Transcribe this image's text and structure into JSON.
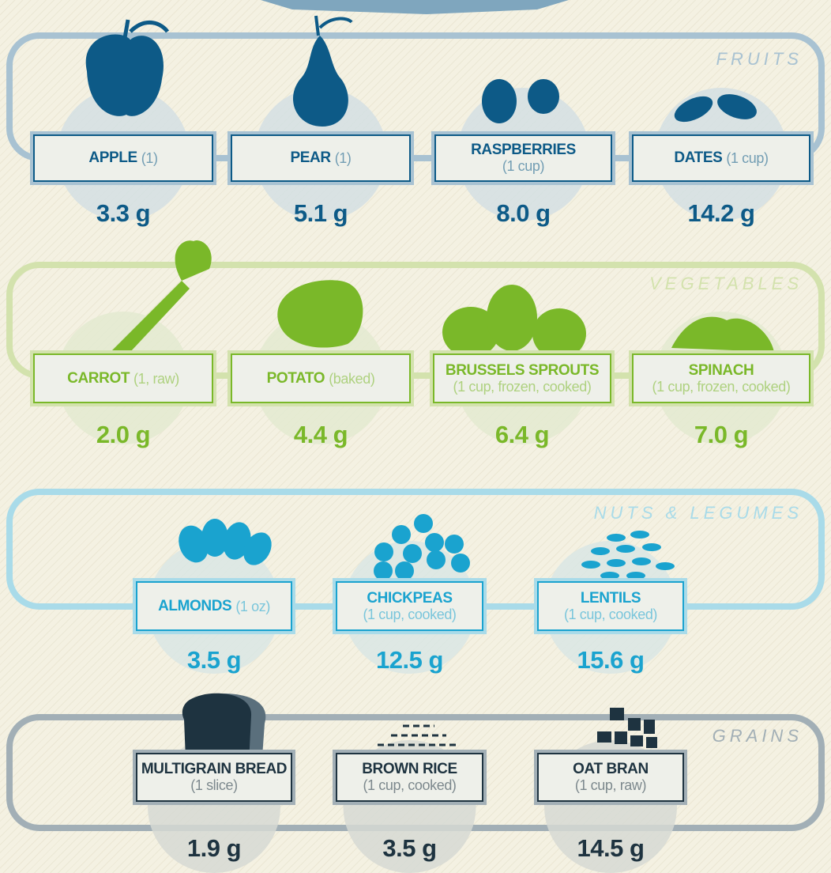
{
  "sections": [
    {
      "title": "FRUITS",
      "items": [
        {
          "name": "APPLE",
          "portion": "(1)",
          "fiber": "3.3 g"
        },
        {
          "name": "PEAR",
          "portion": "(1)",
          "fiber": "5.1 g"
        },
        {
          "name": "RASPBERRIES",
          "portion": "(1 cup)",
          "fiber": "8.0 g"
        },
        {
          "name": "DATES",
          "portion": "(1 cup)",
          "fiber": "14.2 g"
        }
      ]
    },
    {
      "title": "VEGETABLES",
      "items": [
        {
          "name": "CARROT",
          "portion": "(1, raw)",
          "fiber": "2.0 g"
        },
        {
          "name": "POTATO",
          "portion": "(baked)",
          "fiber": "4.4 g"
        },
        {
          "name": "BRUSSELS SPROUTS",
          "portion": "(1 cup, frozen, cooked)",
          "fiber": "6.4 g"
        },
        {
          "name": "SPINACH",
          "portion": "(1 cup, frozen, cooked)",
          "fiber": "7.0 g"
        }
      ]
    },
    {
      "title": "NUTS & LEGUMES",
      "items": [
        {
          "name": "ALMONDS",
          "portion": "(1 oz)",
          "fiber": "3.5 g"
        },
        {
          "name": "CHICKPEAS",
          "portion": "(1 cup, cooked)",
          "fiber": "12.5 g"
        },
        {
          "name": "LENTILS",
          "portion": "(1 cup, cooked)",
          "fiber": "15.6 g"
        }
      ]
    },
    {
      "title": "GRAINS",
      "items": [
        {
          "name": "MULTIGRAIN BREAD",
          "portion": "(1 slice)",
          "fiber": "1.9 g"
        },
        {
          "name": "BROWN RICE",
          "portion": "(1 cup, cooked)",
          "fiber": "3.5 g"
        },
        {
          "name": "OAT BRAN",
          "portion": "(1 cup, raw)",
          "fiber": "14.5 g"
        }
      ]
    }
  ]
}
